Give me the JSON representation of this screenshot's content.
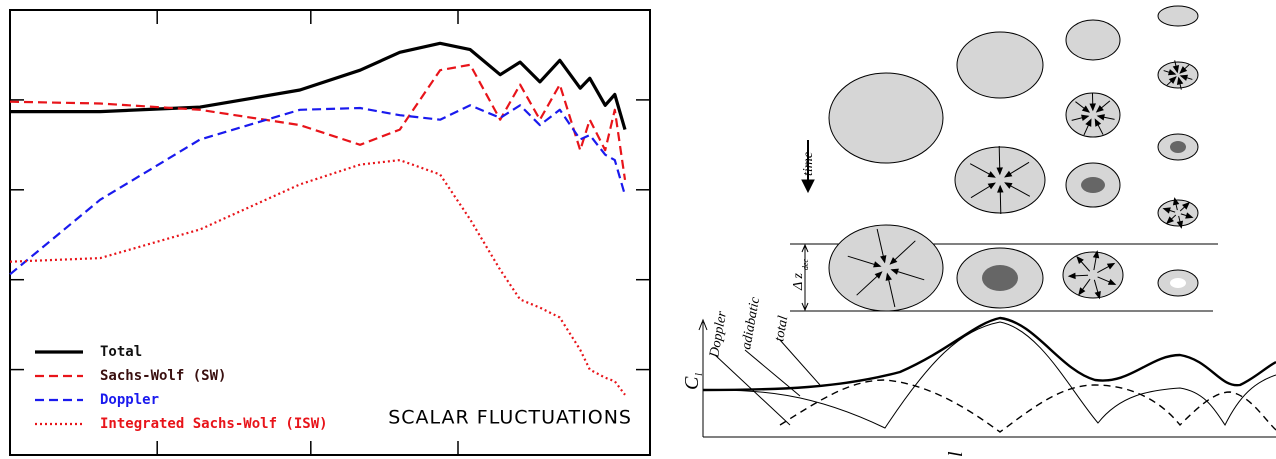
{
  "chart_data": {
    "type": "line",
    "annotation": "SCALAR FLUCTUATIONS",
    "legend": "lower left",
    "xlim": [
      0,
      10
    ],
    "ylim": [
      0.05,
      5
    ],
    "xticks": [
      2.3,
      4.7,
      7.0
    ],
    "yticks": [
      1,
      2,
      3,
      4
    ],
    "x": [
      0,
      1.41,
      2.97,
      4.53,
      5.47,
      6.09,
      6.72,
      7.19,
      7.66,
      7.97,
      8.28,
      8.59,
      8.91,
      9.06,
      9.3,
      9.45,
      9.61
    ],
    "series": [
      {
        "name": "Total",
        "color": "#000000",
        "dash": "solid",
        "width": 3.2,
        "text_color": "#111111",
        "values": [
          3.87,
          3.87,
          3.92,
          4.11,
          4.33,
          4.53,
          4.63,
          4.56,
          4.28,
          4.42,
          4.2,
          4.44,
          4.13,
          4.24,
          3.94,
          4.06,
          3.67
        ]
      },
      {
        "name": "Sachs-Wolf (SW)",
        "color": "#e8141a",
        "dash": "dashed",
        "width": 2.2,
        "text_color": "#3a1010",
        "values": [
          3.98,
          3.96,
          3.89,
          3.72,
          3.5,
          3.67,
          4.33,
          4.39,
          3.78,
          4.17,
          3.78,
          4.17,
          3.44,
          3.78,
          3.44,
          3.89,
          3.11
        ]
      },
      {
        "name": "Doppler",
        "color": "#1a1aee",
        "dash": "dashed",
        "width": 2.2,
        "text_color": "#1a1aee",
        "values": [
          2.06,
          2.89,
          3.56,
          3.89,
          3.91,
          3.83,
          3.78,
          3.94,
          3.8,
          3.94,
          3.72,
          3.89,
          3.56,
          3.61,
          3.39,
          3.33,
          2.94
        ]
      },
      {
        "name": "Integrated Sachs-Wolf (ISW)",
        "color": "#e8141a",
        "dash": "dotted",
        "width": 2.2,
        "text_color": "#e8141a",
        "values": [
          2.2,
          2.24,
          2.56,
          3.06,
          3.28,
          3.33,
          3.17,
          2.67,
          2.11,
          1.78,
          1.69,
          1.58,
          1.22,
          1.0,
          0.91,
          0.87,
          0.72
        ]
      }
    ]
  },
  "diagram": {
    "time_label": "time",
    "dz_label": "Δ z",
    "dz_subscript": "dec",
    "doppler_label": "Doppler",
    "adiabatic_label": "adiabatic",
    "total_label": "total",
    "y_axis_label": "C",
    "y_axis_subscript": "l",
    "x_axis_label": "l"
  }
}
